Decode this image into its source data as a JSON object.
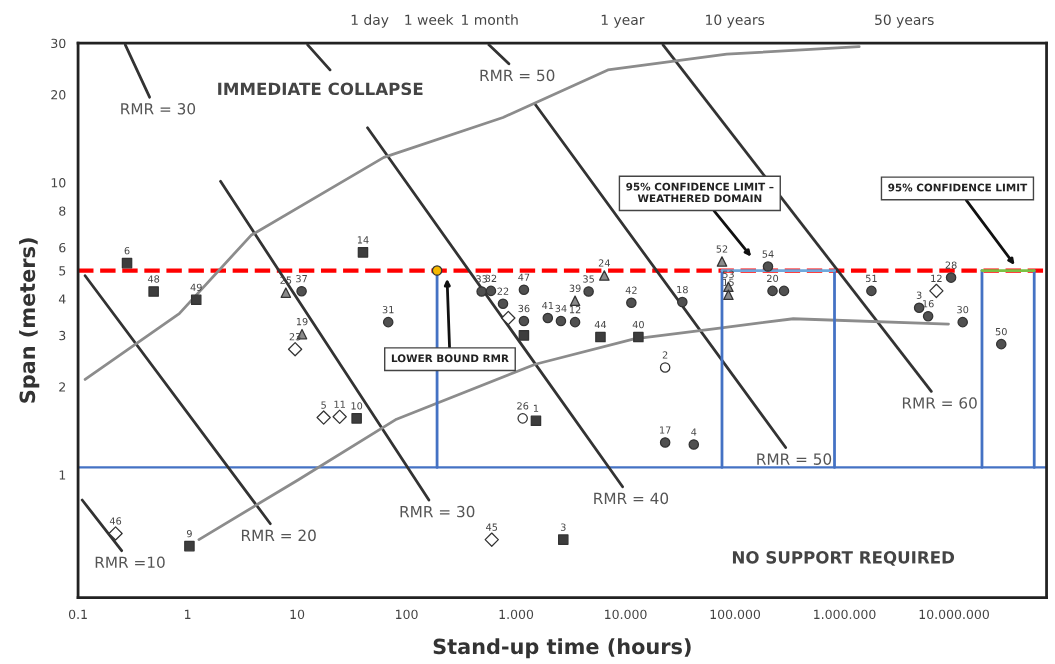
{
  "chart_data": {
    "type": "scatter",
    "xlabel": "Stand-up time (hours)",
    "ylabel": "Span (meters)",
    "log": "xy",
    "xlim": [
      0.1,
      70000000
    ],
    "ylim": [
      0.38,
      30
    ],
    "xticks": [
      0.1,
      1,
      10,
      100,
      {
        "value": 1000,
        "label": "1.000"
      },
      {
        "value": 10000,
        "label": "10.000"
      },
      {
        "value": 100000,
        "label": "100.000"
      },
      {
        "value": 1000000,
        "label": "1.000.000"
      },
      {
        "value": 10000000,
        "label": "10.000.000"
      }
    ],
    "yticks": [
      1,
      2,
      3,
      4,
      5,
      6,
      8,
      10,
      20,
      30
    ],
    "ref_lines": [
      {
        "axis": "y",
        "value": 5,
        "color": "#ff0000",
        "line_style": "dashed"
      },
      {
        "axis": "y",
        "value": 1.06,
        "color": "#4472c4",
        "line_style": "solid"
      }
    ],
    "series": [
      {
        "type": "line",
        "name": "RMR =10",
        "color": "#333333",
        "marker": "none",
        "x": [
          0.109,
          0.25
        ],
        "values": [
          0.82,
          0.55
        ]
      },
      {
        "type": "line",
        "name": "RMR = 20",
        "color": "#333333",
        "marker": "none",
        "x": [
          0.116,
          5.7
        ],
        "values": [
          4.8,
          0.68
        ]
      },
      {
        "type": "line",
        "name": "RMR = 30",
        "color": "#333333",
        "marker": "none",
        "x": [
          0.27,
          0.45
        ],
        "values": [
          29.6,
          19.6
        ]
      },
      {
        "type": "line",
        "name": "RMR = 30",
        "color": "#333333",
        "marker": "none",
        "x": [
          2.0,
          160
        ],
        "values": [
          10.1,
          0.82
        ]
      },
      {
        "type": "line",
        "color": "#333333",
        "marker": "none",
        "x": [
          12.5,
          20
        ],
        "values": [
          29.6,
          24.3
        ]
      },
      {
        "type": "line",
        "name": "RMR = 40",
        "color": "#333333",
        "marker": "none",
        "x": [
          44,
          9400
        ],
        "values": [
          15.4,
          0.91
        ]
      },
      {
        "type": "line",
        "name": "RMR = 50",
        "color": "#333333",
        "marker": "none",
        "x": [
          565,
          860
        ],
        "values": [
          29.6,
          25.5
        ]
      },
      {
        "type": "line",
        "name": "RMR = 50",
        "color": "#333333",
        "marker": "none",
        "x": [
          1500,
          290000
        ],
        "values": [
          18.5,
          1.24
        ]
      },
      {
        "type": "line",
        "name": "RMR = 60",
        "color": "#333333",
        "marker": "none",
        "x": [
          22000,
          6200000
        ],
        "values": [
          29.6,
          1.93
        ]
      },
      {
        "type": "line",
        "color": "#8c8c8c",
        "marker": "none",
        "x": [
          0.116,
          0.84,
          3.8,
          62,
          760,
          6900,
          84000,
          1360000
        ],
        "values": [
          2.12,
          3.56,
          6.6,
          12.2,
          16.7,
          24.3,
          27.5,
          29.2
        ]
      },
      {
        "type": "line",
        "color": "#8c8c8c",
        "marker": "none",
        "x": [
          1.27,
          10.2,
          81,
          1500,
          12000,
          64000,
          340000,
          8900000
        ],
        "values": [
          0.6,
          0.96,
          1.55,
          2.39,
          2.92,
          3.16,
          3.42,
          3.28
        ]
      },
      {
        "type": "line",
        "color": "#4472c4",
        "marker": "none",
        "x": [
          190,
          190
        ],
        "values": [
          5,
          1.06
        ]
      },
      {
        "type": "line",
        "color": "#4472c4",
        "marker": "none",
        "x": [
          76000,
          76000
        ],
        "values": [
          5,
          1.06
        ]
      },
      {
        "type": "line",
        "color": "#4472c4",
        "marker": "none",
        "x": [
          810000,
          810000
        ],
        "values": [
          5,
          1.06
        ]
      },
      {
        "type": "line",
        "color": "#4472c4",
        "marker": "none",
        "x": [
          18000000,
          18000000
        ],
        "values": [
          5,
          1.06
        ]
      },
      {
        "type": "line",
        "color": "#4472c4",
        "marker": "none",
        "x": [
          54000000,
          54000000
        ],
        "values": [
          5,
          1.06
        ]
      },
      {
        "type": "line",
        "color": "#6fa8dc",
        "marker": "none",
        "x": [
          76000,
          810000
        ],
        "values": [
          5,
          5
        ]
      },
      {
        "type": "line",
        "color": "#7ac143",
        "marker": "none",
        "x": [
          18000000,
          54000000
        ],
        "values": [
          5,
          5
        ]
      },
      {
        "color": "#3d3d3d",
        "marker": "square",
        "x": [
          0.28,
          0.49,
          1.2,
          40,
          35,
          1180,
          5900,
          13100,
          1520,
          1.04,
          2700
        ],
        "values": [
          5.3,
          4.24,
          3.97,
          5.77,
          1.56,
          3.0,
          2.96,
          2.96,
          1.53,
          0.57,
          0.6
        ]
      },
      {
        "color": "#505050",
        "marker": "circle",
        "x": [
          11,
          68,
          485,
          590,
          1180,
          760,
          1180,
          1950,
          2570,
          3460,
          4600,
          11300,
          33000,
          23000,
          42000,
          200000,
          220000,
          280000,
          1760000,
          9400000,
          4800000,
          5800000,
          12000000,
          27000000
        ],
        "values": [
          4.25,
          3.33,
          4.24,
          4.26,
          4.3,
          3.85,
          3.36,
          3.44,
          3.36,
          3.33,
          4.24,
          3.88,
          3.9,
          1.29,
          1.27,
          5.16,
          4.26,
          4.26,
          4.26,
          4.73,
          3.73,
          3.49,
          3.33,
          2.8
        ]
      },
      {
        "color": "#ffffff",
        "marker": "diamond",
        "x": [
          9.6,
          17.5,
          24.5,
          850,
          6900000,
          0.22,
          600
        ],
        "values": [
          2.69,
          1.57,
          1.58,
          3.44,
          4.26,
          0.63,
          0.6
        ]
      },
      {
        "color": "#ffffff",
        "marker": "circle",
        "x": [
          23000,
          1150
        ],
        "values": [
          2.33,
          1.56
        ]
      },
      {
        "color": "#8a8a8a",
        "marker": "triangle",
        "x": [
          7.9,
          11.1,
          3460,
          6400,
          76000,
          87000,
          87000
        ],
        "values": [
          4.2,
          3.03,
          3.94,
          4.81,
          5.37,
          4.4,
          4.13
        ]
      },
      {
        "color": "#f5b800",
        "marker": "circle",
        "x": [
          190
        ],
        "values": [
          5
        ]
      }
    ],
    "annotations": [
      "LOWER BOUND RMR",
      "95% CONFIDENCE LIMIT –\nWEATHERED DOMAIN",
      "95% CONFIDENCE LIMIT",
      "IMMEDIATE COLLAPSE",
      "NO SUPPORT REQUIRED",
      "1 day",
      "1 week",
      "1 month",
      "1 year",
      "10 years",
      "50 years",
      {
        "text": "6",
        "x": 0.28,
        "y": 5.3
      },
      {
        "text": "48",
        "x": 0.49,
        "y": 4.24
      },
      {
        "text": "49",
        "x": 1.2,
        "y": 3.97
      },
      {
        "text": "14",
        "x": 40,
        "y": 5.77
      },
      {
        "text": "10",
        "x": 35,
        "y": 1.56
      },
      {
        "text": "44",
        "x": 5900,
        "y": 2.96
      },
      {
        "text": "40",
        "x": 13100,
        "y": 2.96
      },
      {
        "text": "1",
        "x": 1520,
        "y": 1.53
      },
      {
        "text": "9",
        "x": 1.04,
        "y": 0.57
      },
      {
        "text": "3",
        "x": 2700,
        "y": 0.6
      },
      {
        "text": "37",
        "x": 11,
        "y": 4.25
      },
      {
        "text": "31",
        "x": 68,
        "y": 3.33
      },
      {
        "text": "33",
        "x": 485,
        "y": 4.24
      },
      {
        "text": "32",
        "x": 590,
        "y": 4.26
      },
      {
        "text": "47",
        "x": 1180,
        "y": 4.3
      },
      {
        "text": "22",
        "x": 760,
        "y": 3.85
      },
      {
        "text": "36",
        "x": 1180,
        "y": 3.36
      },
      {
        "text": "41",
        "x": 1950,
        "y": 3.44
      },
      {
        "text": "34",
        "x": 2570,
        "y": 3.36
      },
      {
        "text": "12",
        "x": 3460,
        "y": 3.33
      },
      {
        "text": "35",
        "x": 4600,
        "y": 4.24
      },
      {
        "text": "42",
        "x": 11300,
        "y": 3.88
      },
      {
        "text": "18",
        "x": 33000,
        "y": 3.9
      },
      {
        "text": "17",
        "x": 23000,
        "y": 1.29
      },
      {
        "text": "4",
        "x": 42000,
        "y": 1.27
      },
      {
        "text": "54",
        "x": 200000,
        "y": 5.16
      },
      {
        "text": "20",
        "x": 220000,
        "y": 4.26
      },
      {
        "text": "51",
        "x": 1760000,
        "y": 4.26
      },
      {
        "text": "28",
        "x": 9400000,
        "y": 4.73
      },
      {
        "text": "3",
        "x": 4800000,
        "y": 3.73
      },
      {
        "text": "16",
        "x": 5800000,
        "y": 3.49
      },
      {
        "text": "30",
        "x": 12000000,
        "y": 3.33
      },
      {
        "text": "50",
        "x": 27000000,
        "y": 2.8
      },
      {
        "text": "23",
        "x": 9.6,
        "y": 2.69
      },
      {
        "text": "5",
        "x": 17.5,
        "y": 1.57
      },
      {
        "text": "11",
        "x": 24.5,
        "y": 1.58
      },
      {
        "text": "12",
        "x": 6900000,
        "y": 4.26
      },
      {
        "text": "46",
        "x": 0.22,
        "y": 0.63
      },
      {
        "text": "45",
        "x": 600,
        "y": 0.6
      },
      {
        "text": "2",
        "x": 23000,
        "y": 2.33
      },
      {
        "text": "26",
        "x": 1150,
        "y": 1.56
      },
      {
        "text": "25",
        "x": 7.9,
        "y": 4.2
      },
      {
        "text": "19",
        "x": 11.1,
        "y": 3.03
      },
      {
        "text": "39",
        "x": 3460,
        "y": 3.94
      },
      {
        "text": "24",
        "x": 6400,
        "y": 4.81
      },
      {
        "text": "52",
        "x": 76000,
        "y": 5.37
      },
      {
        "text": "53",
        "x": 87000,
        "y": 4.4
      },
      {
        "text": "15",
        "x": 87000,
        "y": 4.13
      }
    ]
  }
}
